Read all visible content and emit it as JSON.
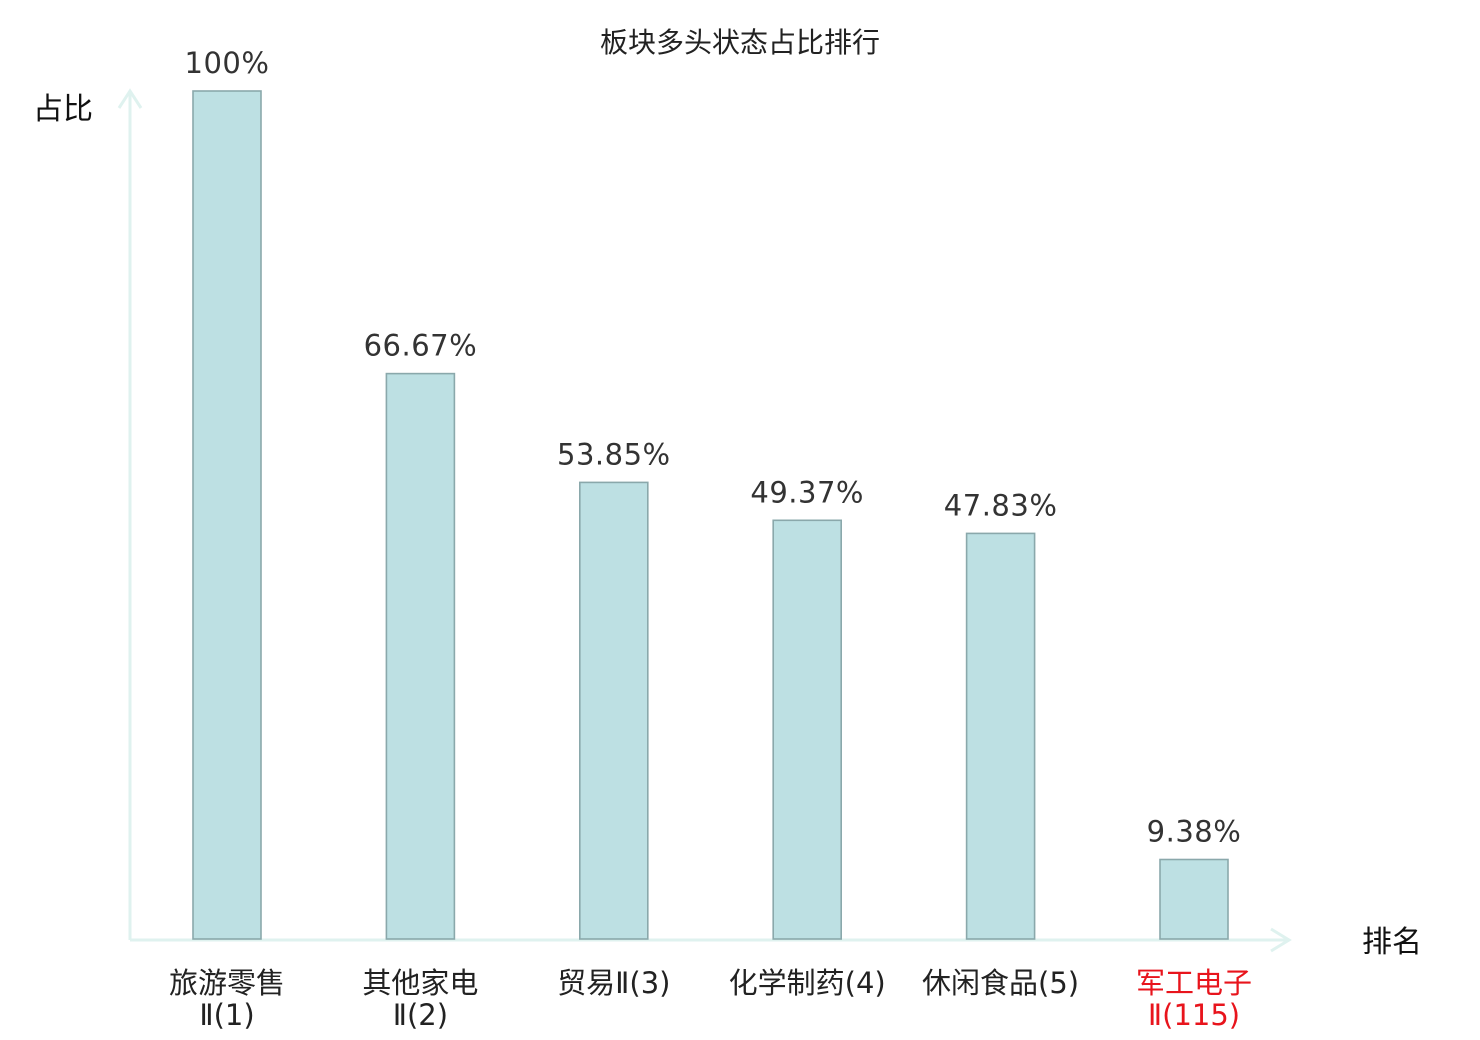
{
  "chart_data": {
    "type": "bar",
    "title": "板块多头状态占比排行",
    "ylabel": "占比",
    "xlabel": "排名",
    "categories": [
      [
        "旅游零售",
        "Ⅱ(1)"
      ],
      [
        "其他家电",
        "Ⅱ(2)"
      ],
      [
        "贸易Ⅱ(3)"
      ],
      [
        "化学制药(4)"
      ],
      [
        "休闲食品(5)"
      ],
      [
        "军工电子",
        "Ⅱ(115)"
      ]
    ],
    "values": [
      100,
      66.67,
      53.85,
      49.37,
      47.83,
      9.38
    ],
    "value_labels": [
      "100%",
      "66.67%",
      "53.85%",
      "49.37%",
      "47.83%",
      "9.38%"
    ],
    "highlight_index": 5,
    "ylim": [
      0,
      100
    ],
    "grid": false,
    "legend": "none"
  },
  "colors": {
    "bar_fill": "#bde0e3",
    "bar_stroke": "#8aa8ab",
    "axis": "#dff2ef",
    "highlight_text": "#e8141c"
  }
}
